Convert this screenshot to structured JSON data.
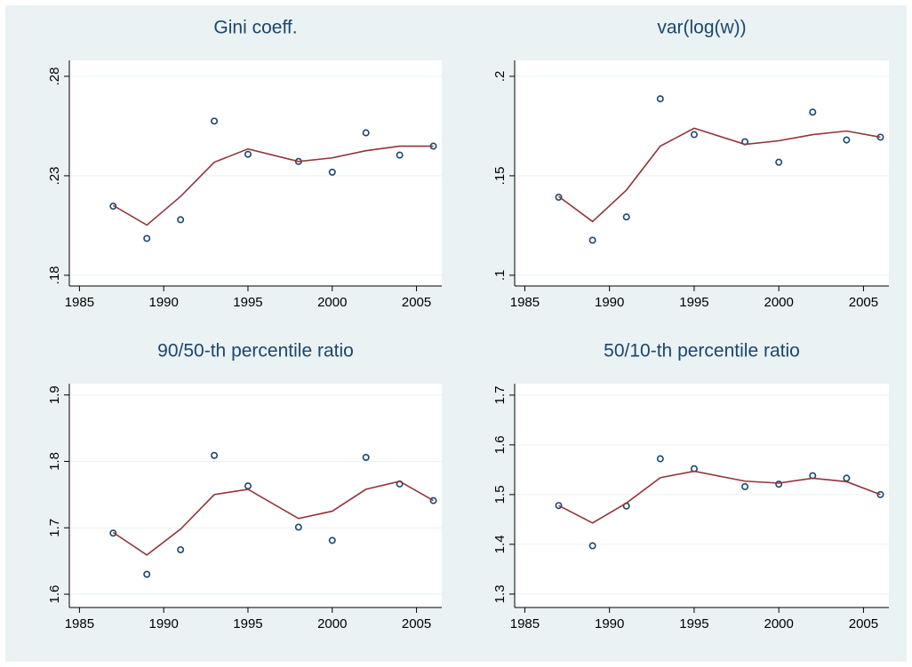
{
  "chart_data": [
    {
      "type": "line",
      "title": "Gini coeff.",
      "grid": true,
      "x": [
        1987,
        1989,
        1991,
        1993,
        1995,
        1998,
        2000,
        2002,
        2004,
        2006
      ],
      "xlim": [
        1984.4,
        2006.5
      ],
      "xticks": [
        1985,
        1990,
        1995,
        2000,
        2005
      ],
      "ylim": [
        0.1746,
        0.288
      ],
      "yticks": [
        {
          "value": 0.18,
          "label": ".18"
        },
        {
          "value": 0.23,
          "label": ".23"
        },
        {
          "value": 0.28,
          "label": ".28"
        }
      ],
      "series": [
        {
          "marker": "hollow-circle",
          "color": "#1a476f",
          "values": [
            0.2147,
            0.1985,
            0.2079,
            0.2575,
            0.2408,
            0.2372,
            0.2318,
            0.2516,
            0.2404,
            0.2449
          ]
        },
        {
          "color": "#90353b",
          "values": [
            0.2151,
            0.2052,
            0.2196,
            0.2368,
            0.2435,
            0.2372,
            0.239,
            0.2426,
            0.2449,
            0.2449
          ]
        }
      ]
    },
    {
      "type": "line",
      "title": "var(log(w))",
      "grid": true,
      "x": [
        1987,
        1989,
        1991,
        1993,
        1995,
        1998,
        2000,
        2002,
        2004,
        2006
      ],
      "xlim": [
        1984.4,
        2006.5
      ],
      "xticks": [
        1985,
        1990,
        1995,
        2000,
        2005
      ],
      "ylim": [
        0.0946,
        0.208
      ],
      "yticks": [
        {
          "value": 0.1,
          "label": ".1"
        },
        {
          "value": 0.15,
          "label": ".15"
        },
        {
          "value": 0.2,
          "label": ".2"
        }
      ],
      "series": [
        {
          "marker": "hollow-circle",
          "color": "#1a476f",
          "values": [
            0.1392,
            0.1176,
            0.1293,
            0.1887,
            0.1707,
            0.1671,
            0.1568,
            0.182,
            0.168,
            0.1694
          ]
        },
        {
          "color": "#90353b",
          "values": [
            0.1396,
            0.127,
            0.1428,
            0.1649,
            0.1739,
            0.1658,
            0.1676,
            0.1707,
            0.1725,
            0.1694
          ]
        }
      ]
    },
    {
      "type": "line",
      "title": "90/50-th percentile ratio",
      "grid": true,
      "x": [
        1987,
        1989,
        1991,
        1993,
        1995,
        1998,
        2000,
        2002,
        2004,
        2006
      ],
      "xlim": [
        1984.4,
        2006.5
      ],
      "xticks": [
        1985,
        1990,
        1995,
        2000,
        2005
      ],
      "ylim": [
        1.58,
        1.917
      ],
      "yticks": [
        1.6,
        1.7,
        1.8,
        1.9
      ],
      "series": [
        {
          "marker": "hollow-circle",
          "color": "#1a476f",
          "values": [
            1.692,
            1.63,
            1.667,
            1.809,
            1.763,
            1.701,
            1.681,
            1.806,
            1.766,
            1.741
          ]
        },
        {
          "color": "#90353b",
          "values": [
            1.693,
            1.659,
            1.698,
            1.75,
            1.758,
            1.714,
            1.725,
            1.758,
            1.77,
            1.741
          ]
        }
      ]
    },
    {
      "type": "line",
      "title": "50/10-th percentile ratio",
      "grid": true,
      "x": [
        1987,
        1989,
        1991,
        1993,
        1995,
        1998,
        2000,
        2002,
        2004,
        2006
      ],
      "xlim": [
        1984.4,
        2006.5
      ],
      "xticks": [
        1985,
        1990,
        1995,
        2000,
        2005
      ],
      "ylim": [
        1.273,
        1.723
      ],
      "yticks": [
        1.3,
        1.4,
        1.5,
        1.6,
        1.7
      ],
      "series": [
        {
          "marker": "hollow-circle",
          "color": "#1a476f",
          "values": [
            1.478,
            1.397,
            1.477,
            1.572,
            1.552,
            1.516,
            1.521,
            1.538,
            1.533,
            1.5
          ]
        },
        {
          "color": "#90353b",
          "values": [
            1.478,
            1.443,
            1.483,
            1.534,
            1.547,
            1.527,
            1.523,
            1.533,
            1.526,
            1.5
          ]
        }
      ]
    }
  ]
}
